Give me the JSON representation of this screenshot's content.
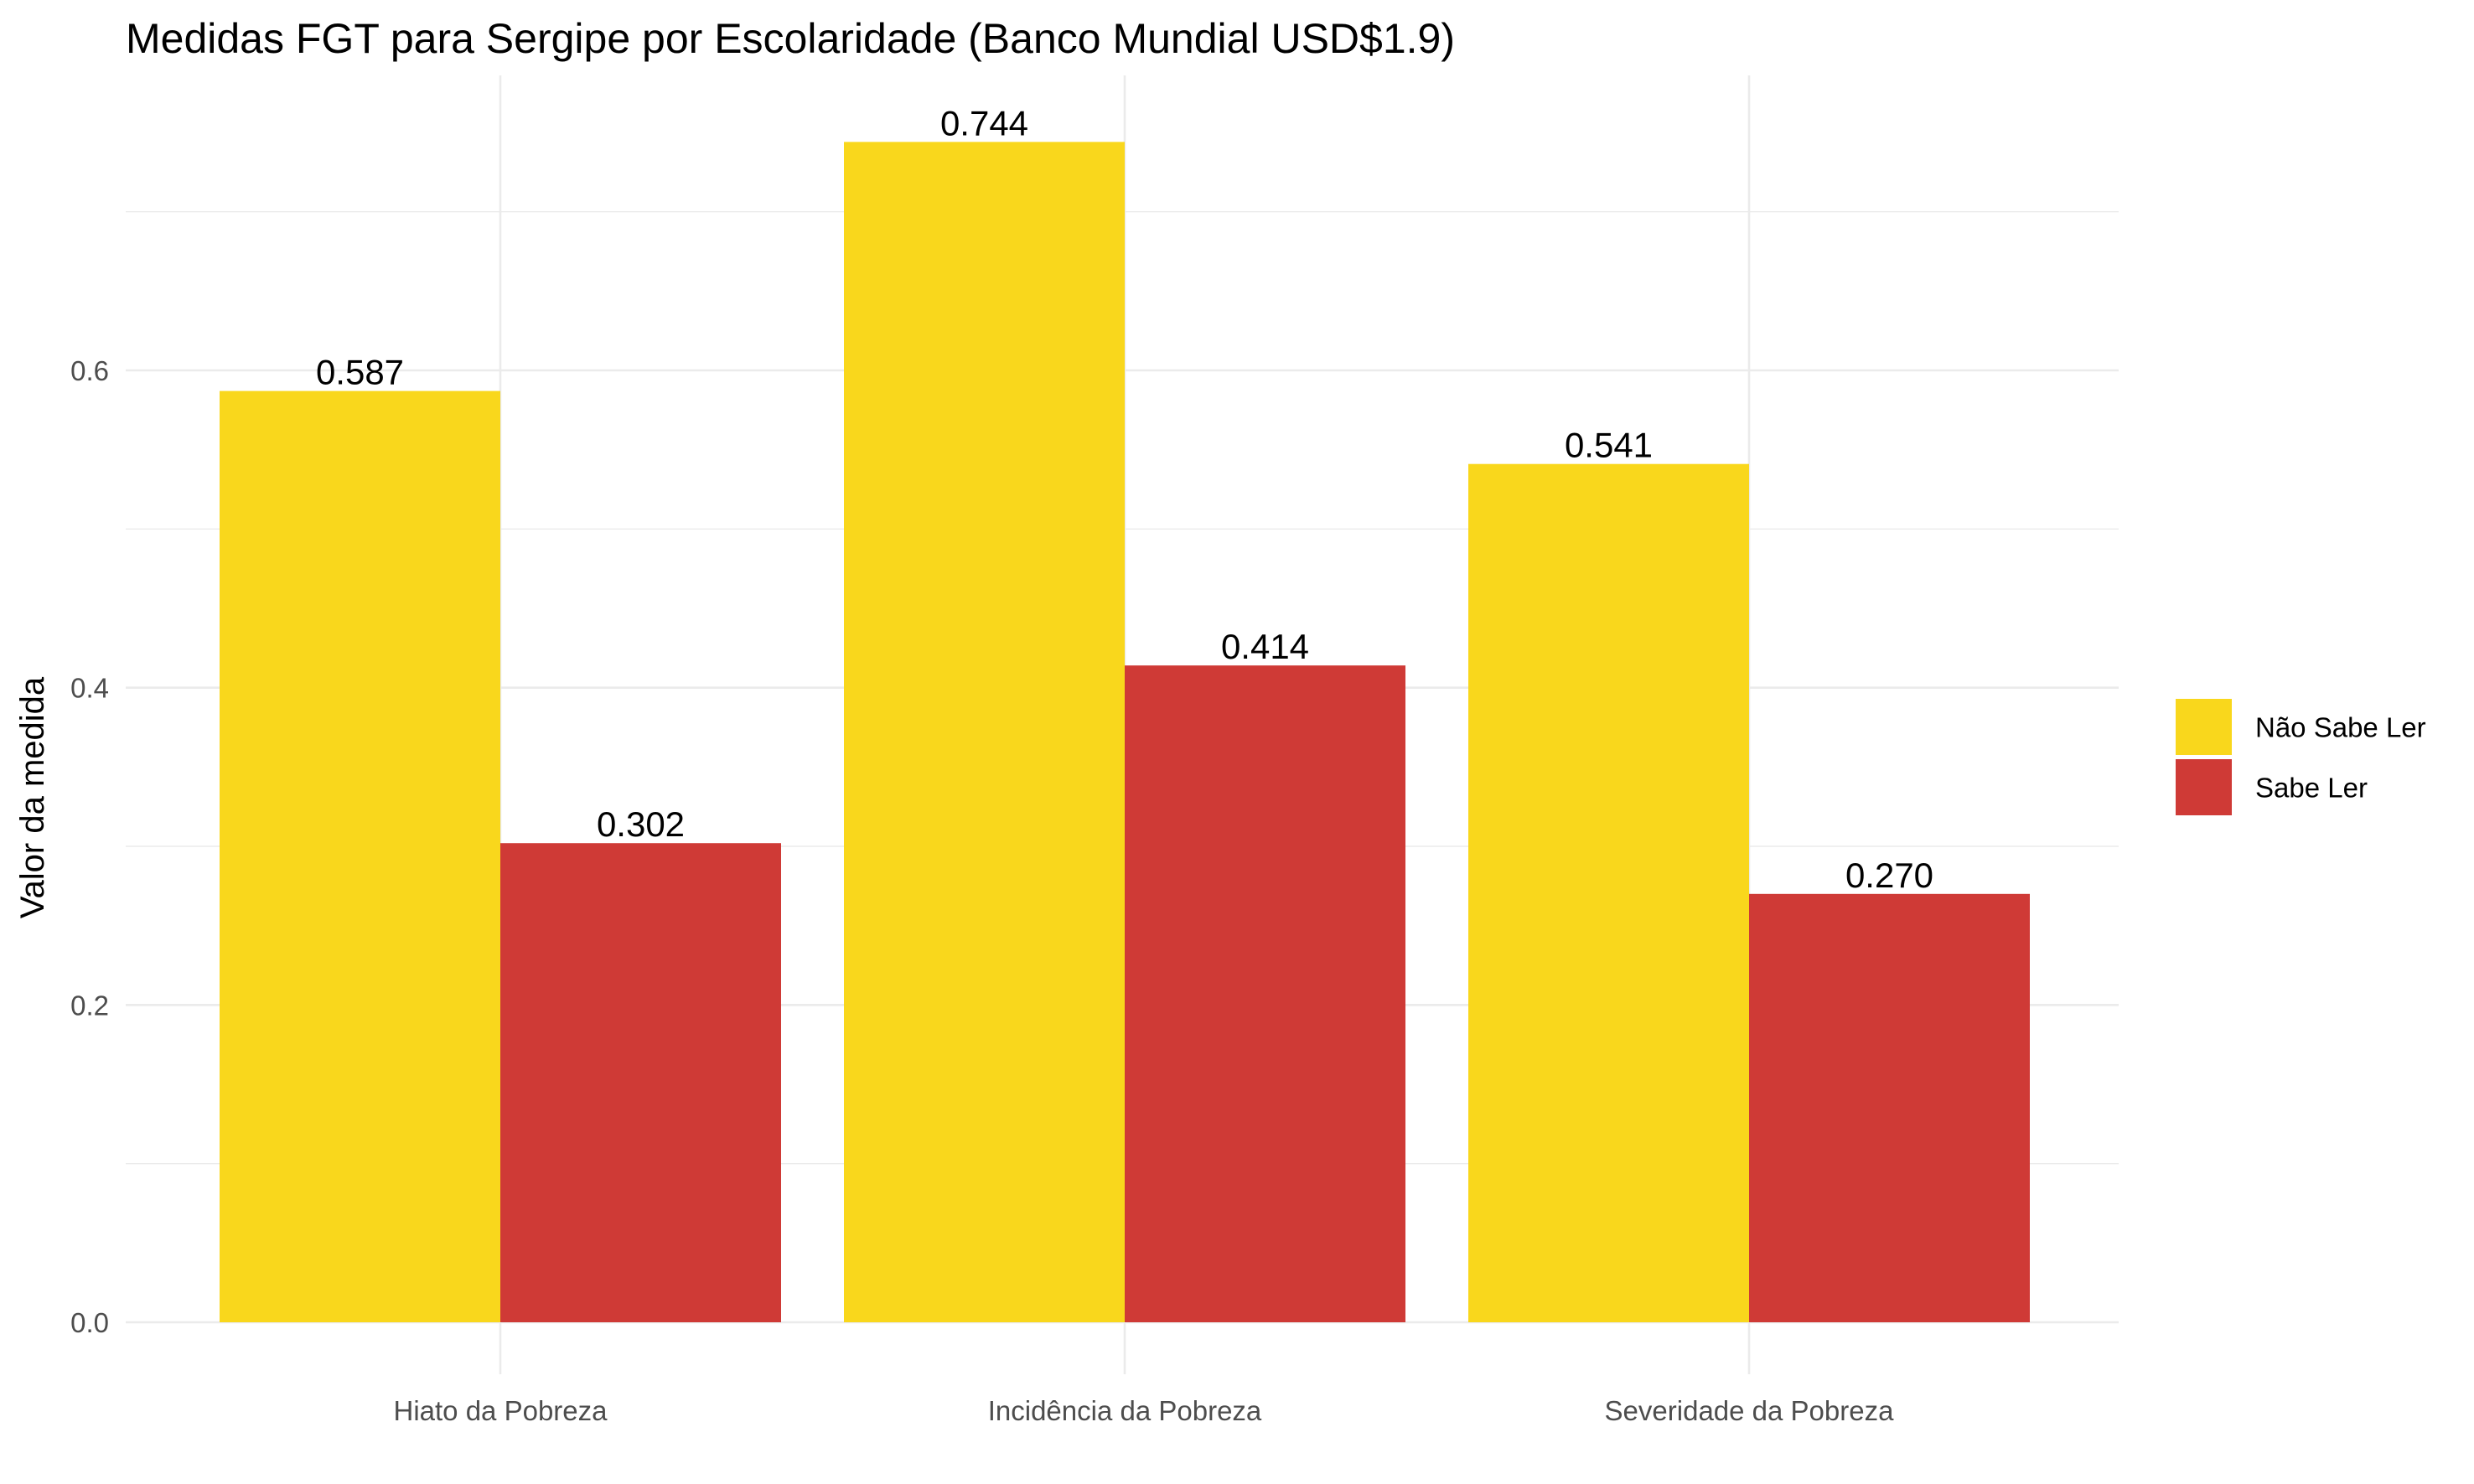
{
  "chart_data": {
    "type": "bar",
    "title": "Medidas FGT para Sergipe por Escolaridade (Banco Mundial USD$1.9)",
    "xlabel": "",
    "ylabel": "Valor da medida",
    "categories": [
      "Hiato da Pobreza",
      "Incidência da Pobreza",
      "Severidade da Pobreza"
    ],
    "series": [
      {
        "name": "Não Sabe Ler",
        "color": "#f9d71c",
        "values": [
          0.587,
          0.744,
          0.541
        ],
        "labels": [
          "0.587",
          "0.744",
          "0.541"
        ]
      },
      {
        "name": "Sabe Ler",
        "color": "#cf3a36",
        "values": [
          0.302,
          0.414,
          0.27
        ],
        "labels": [
          "0.302",
          "0.414",
          "0.270"
        ]
      }
    ],
    "yticks": [
      0.0,
      0.2,
      0.4,
      0.6
    ],
    "ytick_labels": [
      "0.0",
      "0.2",
      "0.4",
      "0.6"
    ],
    "ylim": [
      -0.037,
      0.781
    ],
    "grid": true,
    "legend_position": "right"
  }
}
